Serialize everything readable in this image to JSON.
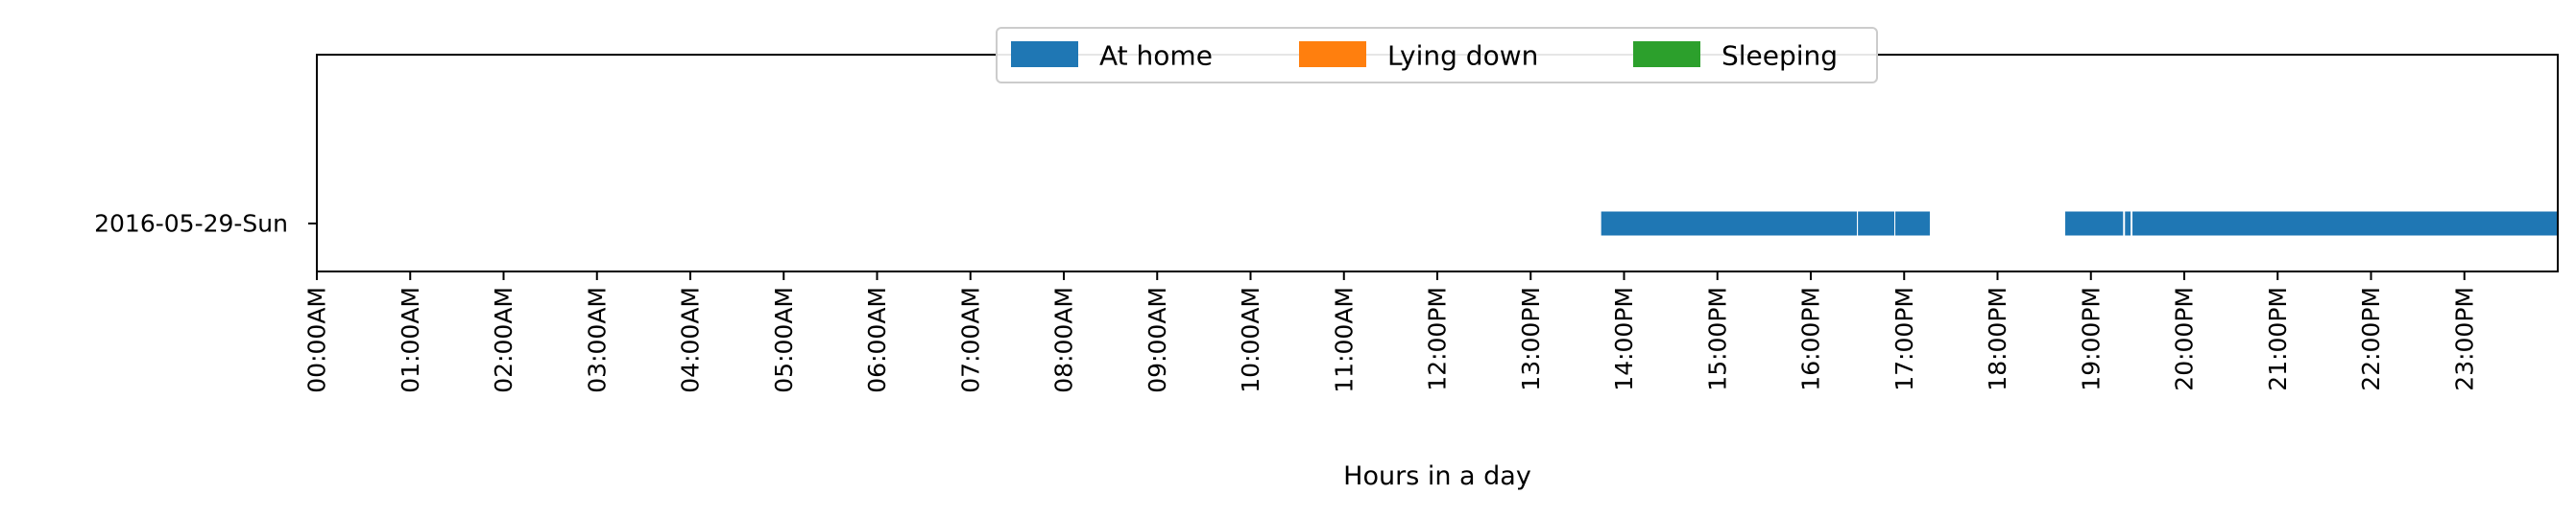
{
  "chart_data": {
    "type": "broken-barh",
    "title": "",
    "xlabel": "Hours in a day",
    "ylabel": "",
    "xlim": [
      0,
      24
    ],
    "x_tick_values": [
      0,
      1,
      2,
      3,
      4,
      5,
      6,
      7,
      8,
      9,
      10,
      11,
      12,
      13,
      14,
      15,
      16,
      17,
      18,
      19,
      20,
      21,
      22,
      23
    ],
    "x_tick_labels": [
      "00:00AM",
      "01:00AM",
      "02:00AM",
      "03:00AM",
      "04:00AM",
      "05:00AM",
      "06:00AM",
      "07:00AM",
      "08:00AM",
      "09:00AM",
      "10:00AM",
      "11:00AM",
      "12:00PM",
      "13:00PM",
      "14:00PM",
      "15:00PM",
      "16:00PM",
      "17:00PM",
      "18:00PM",
      "19:00PM",
      "20:00PM",
      "21:00PM",
      "22:00PM",
      "23:00PM"
    ],
    "categories": [
      "2016-05-29-Sun"
    ],
    "legend": {
      "position": "top-center",
      "entries": [
        {
          "name": "At home",
          "color": "#1f77b4"
        },
        {
          "name": "Lying down",
          "color": "#ff7f0e"
        },
        {
          "name": "Sleeping",
          "color": "#2ca02c"
        }
      ]
    },
    "series": [
      {
        "name": "At home",
        "color": "#1f77b4",
        "segments": [
          {
            "row": 0,
            "start": 13.75,
            "end": 16.5
          },
          {
            "row": 0,
            "start": 16.5,
            "end": 16.9
          },
          {
            "row": 0,
            "start": 16.9,
            "end": 17.28
          },
          {
            "row": 0,
            "start": 18.72,
            "end": 19.35
          },
          {
            "row": 0,
            "start": 19.36,
            "end": 19.43
          },
          {
            "row": 0,
            "start": 19.44,
            "end": 24.0
          }
        ]
      },
      {
        "name": "Lying down",
        "color": "#ff7f0e",
        "segments": []
      },
      {
        "name": "Sleeping",
        "color": "#2ca02c",
        "segments": []
      }
    ]
  }
}
